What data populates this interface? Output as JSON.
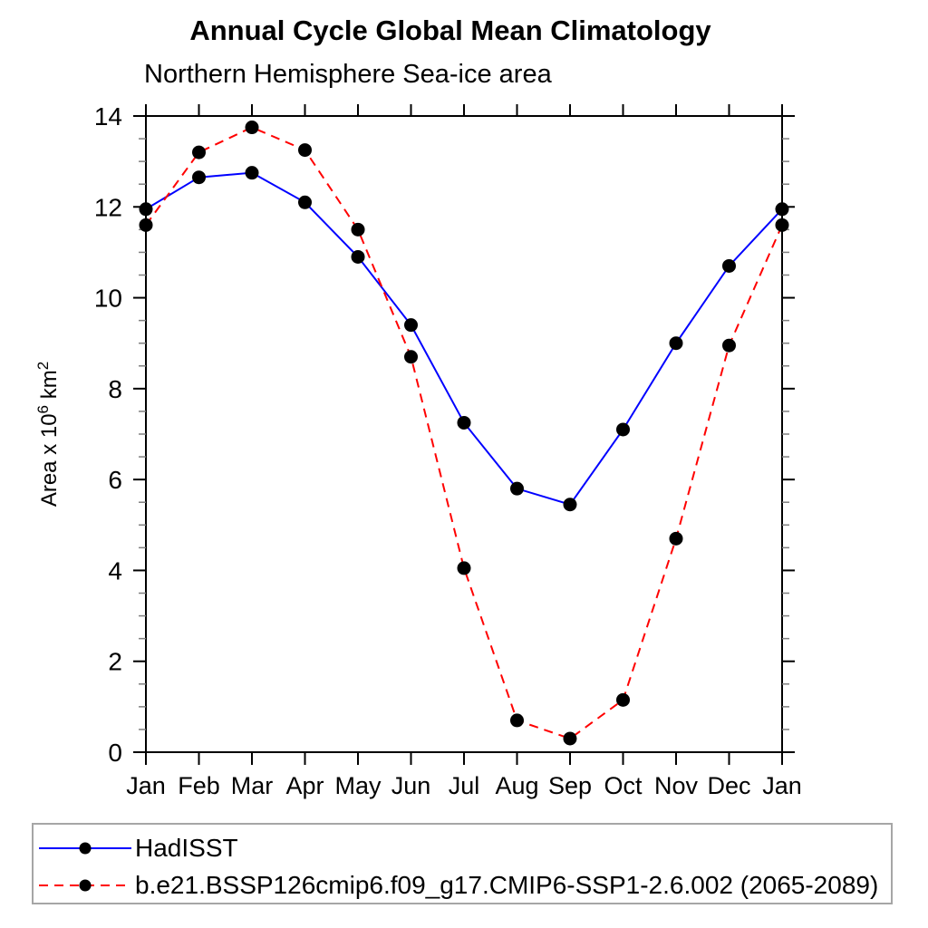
{
  "page": {
    "background": "#ffffff"
  },
  "chart_data": {
    "type": "line",
    "title": "Annual Cycle Global Mean Climatology",
    "subtitle": "Northern Hemisphere Sea-ice area",
    "ylabel": "Area x 10^6 km^2",
    "ylabel_parts": [
      {
        "t": "Area x 10",
        "sup": false
      },
      {
        "t": "6",
        "sup": true
      },
      {
        "t": " km",
        "sup": false
      },
      {
        "t": "2",
        "sup": true
      }
    ],
    "x_categories": [
      "Jan",
      "Feb",
      "Mar",
      "Apr",
      "May",
      "Jun",
      "Jul",
      "Aug",
      "Sep",
      "Oct",
      "Nov",
      "Dec",
      "Jan"
    ],
    "ylim": [
      0,
      14
    ],
    "y_major_step": 2,
    "y_minor_step": 0.5,
    "y_tick_labels": [
      "0",
      "2",
      "4",
      "6",
      "8",
      "10",
      "12",
      "14"
    ],
    "grid": false,
    "legend_position": "bottom-left-box",
    "series": [
      {
        "name": "HadISST",
        "color": "#0000ff",
        "style": "solid",
        "marker": "circle",
        "values": [
          11.95,
          12.65,
          12.75,
          12.1,
          10.9,
          9.4,
          7.25,
          5.8,
          5.45,
          7.1,
          9.0,
          10.7,
          11.95
        ]
      },
      {
        "name": "b.e21.BSSP126cmip6.f09_g17.CMIP6-SSP1-2.6.002 (2065-2089)",
        "color": "#ff0000",
        "style": "dashed",
        "marker": "circle",
        "values": [
          11.6,
          13.2,
          13.75,
          13.25,
          11.5,
          8.7,
          4.05,
          0.7,
          0.3,
          1.15,
          4.7,
          8.95,
          11.6
        ]
      }
    ]
  },
  "colors": {
    "axis": "#000000",
    "minor_tick": "#808080",
    "marker_fill": "#000000",
    "legend_border": "#a6a6a6"
  }
}
